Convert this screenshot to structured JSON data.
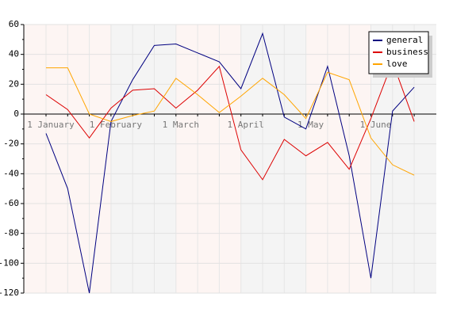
{
  "chart_data": {
    "type": "line",
    "categories": [
      "1 January",
      null,
      null,
      "1 February",
      null,
      null,
      "1 March",
      null,
      null,
      "1 April",
      null,
      null,
      "1 May",
      null,
      null,
      "1 June",
      null,
      null
    ],
    "series": [
      {
        "name": "general",
        "color": "#000080",
        "values": [
          -13,
          -50,
          -120,
          -5,
          23,
          46,
          47,
          41,
          35,
          17,
          54,
          -2,
          -10,
          32,
          -28,
          -110,
          2,
          18
        ]
      },
      {
        "name": "business",
        "color": "#dd0000",
        "values": [
          13,
          3,
          -16,
          4,
          16,
          17,
          4,
          16,
          32,
          -24,
          -44,
          -17,
          -28,
          -19,
          -37,
          -3,
          35,
          -5
        ]
      },
      {
        "name": "love",
        "color": "#ffa500",
        "values": [
          31,
          31,
          0,
          -5,
          -1,
          2,
          24,
          13,
          1,
          12,
          24,
          13,
          -3,
          28,
          23,
          -16,
          -34,
          -41
        ]
      }
    ],
    "ylim": [
      -120,
      60
    ],
    "yticks": [
      -120,
      -100,
      -80,
      -60,
      -40,
      -20,
      0,
      20,
      40,
      60
    ],
    "grid": true,
    "legend": "top-right"
  }
}
